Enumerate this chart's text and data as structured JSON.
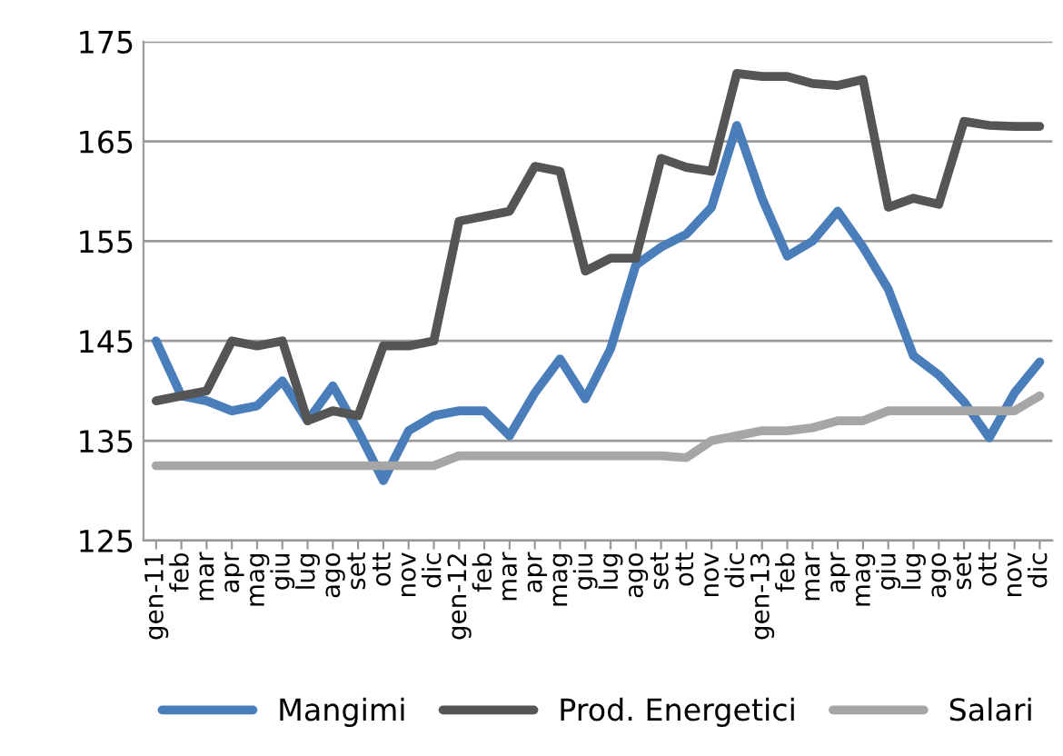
{
  "chart_data": {
    "type": "line",
    "categories": [
      "gen-11",
      "feb",
      "mar",
      "apr",
      "mag",
      "giu",
      "lug",
      "ago",
      "set",
      "ott",
      "nov",
      "dic",
      "gen-12",
      "feb",
      "mar",
      "apr",
      "mag",
      "giu",
      "lug",
      "ago",
      "set",
      "ott",
      "nov",
      "dic",
      "gen-13",
      "feb",
      "mar",
      "apr",
      "mag",
      "giu",
      "lug",
      "ago",
      "set",
      "ott",
      "nov",
      "dic"
    ],
    "series": [
      {
        "name": "Mangimi",
        "color": "#4a7ebb",
        "values": [
          145,
          139.5,
          139,
          138,
          138.5,
          141,
          137,
          140.5,
          136,
          131,
          136,
          137.5,
          138,
          138,
          135.5,
          139.8,
          143.2,
          139.2,
          144.2,
          152.6,
          154.4,
          155.7,
          158.4,
          166.6,
          159.3,
          153.5,
          155,
          158,
          154.4,
          150.2,
          143.5,
          141.6,
          138.9,
          135.3,
          139.8,
          142.9
        ]
      },
      {
        "name": "Prod. Energetici",
        "color": "#555555",
        "values": [
          139,
          139.5,
          140,
          145,
          144.5,
          145,
          137,
          138,
          137.5,
          144.5,
          144.5,
          145,
          157,
          157.5,
          158,
          162.5,
          162,
          152,
          153.3,
          153.3,
          163.3,
          162.4,
          162,
          171.8,
          171.5,
          171.5,
          170.8,
          170.6,
          171.2,
          158.4,
          159.3,
          158.7,
          167,
          166.6,
          166.5,
          166.5
        ]
      },
      {
        "name": "Salari",
        "color": "#a6a6a6",
        "values": [
          132.5,
          132.5,
          132.5,
          132.5,
          132.5,
          132.5,
          132.5,
          132.5,
          132.5,
          132.5,
          132.5,
          132.5,
          133.5,
          133.5,
          133.5,
          133.5,
          133.5,
          133.5,
          133.5,
          133.5,
          133.5,
          133.3,
          135,
          135.5,
          136,
          136,
          136.3,
          137,
          137,
          138,
          138,
          138,
          138,
          138,
          138,
          139.5
        ]
      }
    ],
    "ylim": [
      125,
      175
    ],
    "yticks": [
      125,
      135,
      145,
      155,
      165,
      175
    ],
    "grid": "y",
    "legend": "bottom",
    "line_style": "solid",
    "marker": "none"
  }
}
